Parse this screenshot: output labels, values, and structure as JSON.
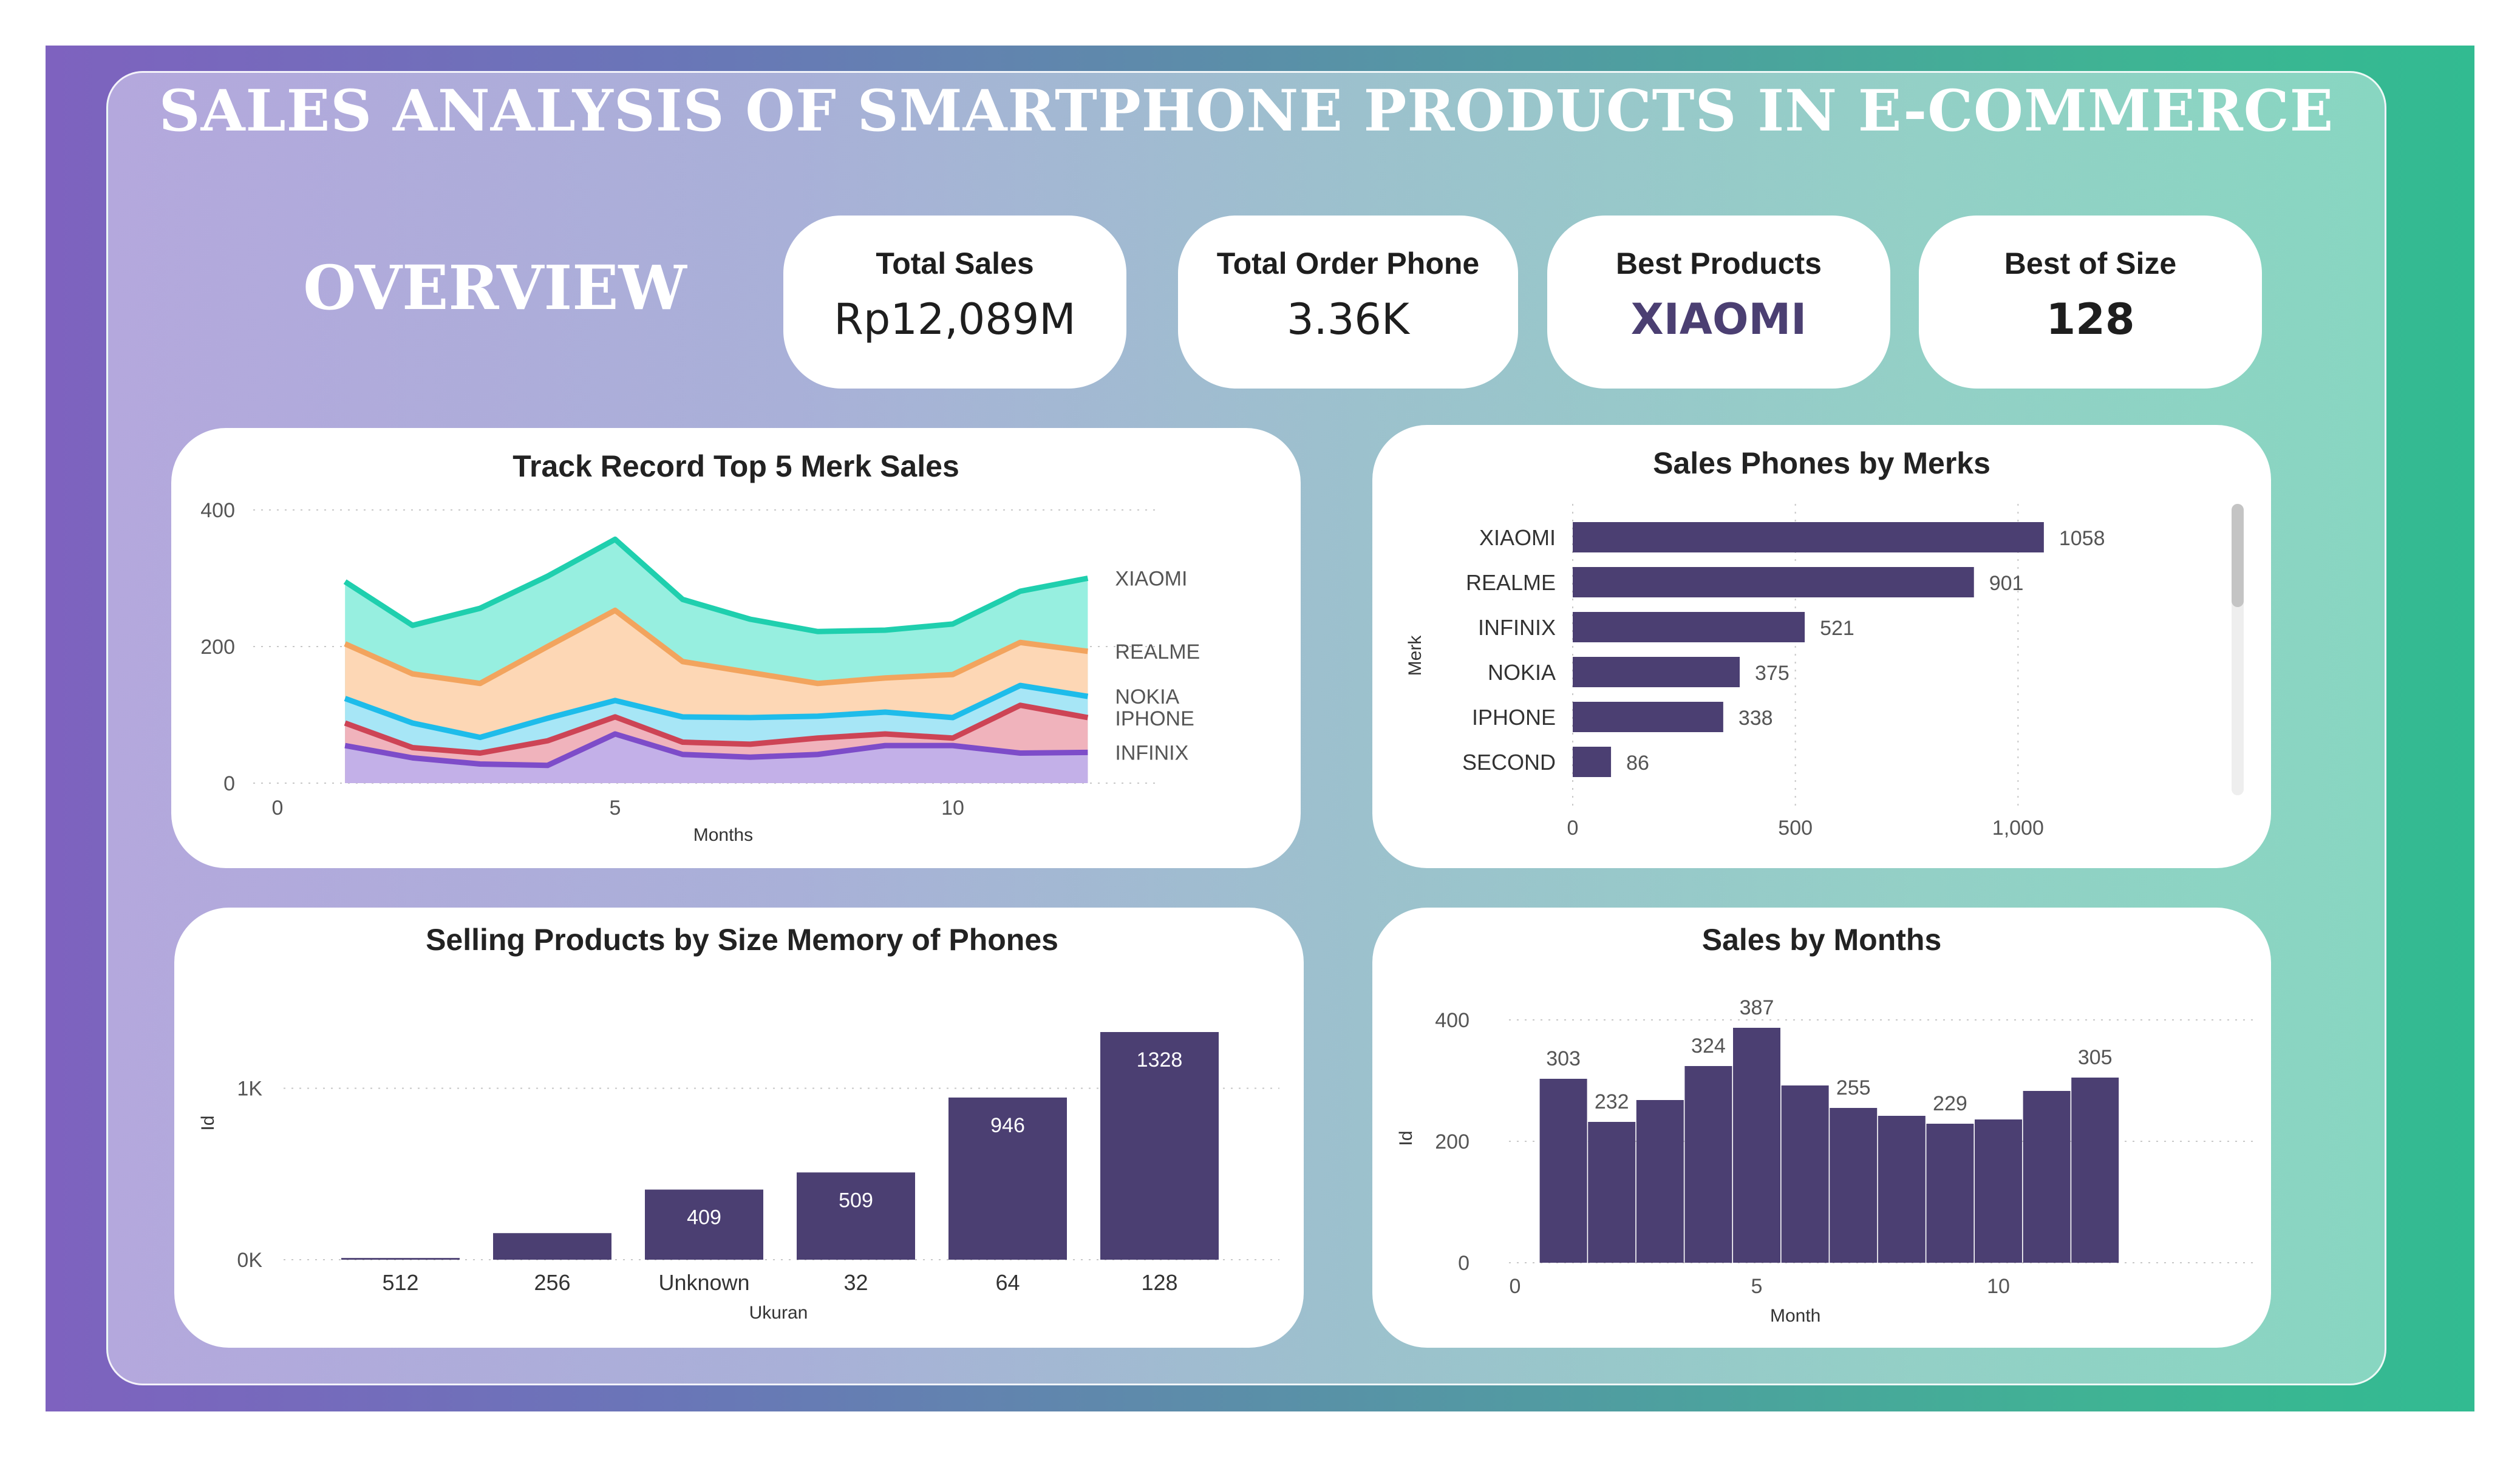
{
  "header": {
    "title": "SALES ANALYSIS OF SMARTPHONE PRODUCTS IN E-COMMERCE",
    "overview": "OVERVIEW"
  },
  "kpis": [
    {
      "label": "Total Sales",
      "value": "Rp12,089M"
    },
    {
      "label": "Total Order Phone",
      "value": "3.36K"
    },
    {
      "label": "Best Products",
      "value": "XIAOMI"
    },
    {
      "label": "Best of Size",
      "value": "128"
    }
  ],
  "colors": {
    "bar": "#4b3f72",
    "best_product": "#4b3f72"
  },
  "chart_data": [
    {
      "id": "track",
      "type": "area",
      "title": "Track Record Top 5 Merk Sales",
      "xlabel": "Months",
      "ylabel": "",
      "xlim": [
        0,
        12.5
      ],
      "ylim": [
        0,
        400
      ],
      "xticks": [
        0,
        5,
        10
      ],
      "yticks": [
        0,
        200,
        400
      ],
      "x": [
        1,
        2,
        3,
        4,
        5,
        6,
        7,
        8,
        9,
        10,
        11,
        12
      ],
      "series": [
        {
          "name": "XIAOMI",
          "color": "#1fcfae",
          "fill": "#97efe0",
          "values": [
            295,
            231,
            256,
            303,
            357,
            269,
            240,
            222,
            224,
            233,
            281,
            300
          ]
        },
        {
          "name": "REALME",
          "color": "#f2a45e",
          "fill": "#fdd7b5",
          "values": [
            204,
            160,
            146,
            200,
            253,
            178,
            162,
            146,
            154,
            159,
            206,
            193
          ]
        },
        {
          "name": "NOKIA",
          "color": "#1ebcea",
          "fill": "#a7e6f6",
          "values": [
            124,
            88,
            67,
            95,
            121,
            97,
            96,
            98,
            104,
            96,
            143,
            127
          ]
        },
        {
          "name": "IPHONE",
          "color": "#cd4455",
          "fill": "#f0b3bc",
          "values": [
            88,
            52,
            44,
            62,
            97,
            60,
            57,
            66,
            72,
            66,
            114,
            96
          ]
        },
        {
          "name": "INFINIX",
          "color": "#7d4cc9",
          "fill": "#c3b0e8",
          "values": [
            55,
            37,
            28,
            26,
            72,
            42,
            38,
            42,
            55,
            55,
            44,
            45
          ]
        }
      ]
    },
    {
      "id": "merks",
      "type": "bar",
      "orientation": "horizontal",
      "title": "Sales Phones by Merks",
      "xlabel": "",
      "ylabel": "Merk",
      "xlim": [
        0,
        1200
      ],
      "xticks": [
        0,
        500,
        1000
      ],
      "xtick_labels": [
        "0",
        "500",
        "1,000"
      ],
      "categories": [
        "XIAOMI",
        "REALME",
        "INFINIX",
        "NOKIA",
        "IPHONE",
        "SECOND"
      ],
      "values": [
        1058,
        901,
        521,
        375,
        338,
        86
      ]
    },
    {
      "id": "size",
      "type": "bar",
      "title": "Selling Products by Size Memory of Phones",
      "xlabel": "Ukuran",
      "ylabel": "Id",
      "ylim": [
        0,
        1328
      ],
      "yticks": [
        0,
        1000
      ],
      "ytick_labels": [
        "0K",
        "1K"
      ],
      "categories": [
        "512",
        "256",
        "Unknown",
        "32",
        "64",
        "128"
      ],
      "values": [
        10,
        155,
        409,
        509,
        946,
        1328
      ],
      "labels": [
        "",
        "",
        "409",
        "509",
        "946",
        "1328"
      ]
    },
    {
      "id": "months",
      "type": "bar",
      "title": "Sales by Months",
      "xlabel": "Month",
      "ylabel": "Id",
      "xlim": [
        0,
        12.5
      ],
      "xticks": [
        0,
        5,
        10
      ],
      "ylim": [
        0,
        400
      ],
      "yticks": [
        0,
        200,
        400
      ],
      "x": [
        1,
        2,
        3,
        4,
        5,
        6,
        7,
        8,
        9,
        10,
        11,
        12
      ],
      "values": [
        303,
        232,
        268,
        324,
        387,
        292,
        255,
        242,
        229,
        236,
        283,
        305
      ],
      "labels": [
        "303",
        "232",
        "",
        "324",
        "387",
        "",
        "255",
        "",
        "229",
        "",
        "",
        "305"
      ]
    }
  ]
}
